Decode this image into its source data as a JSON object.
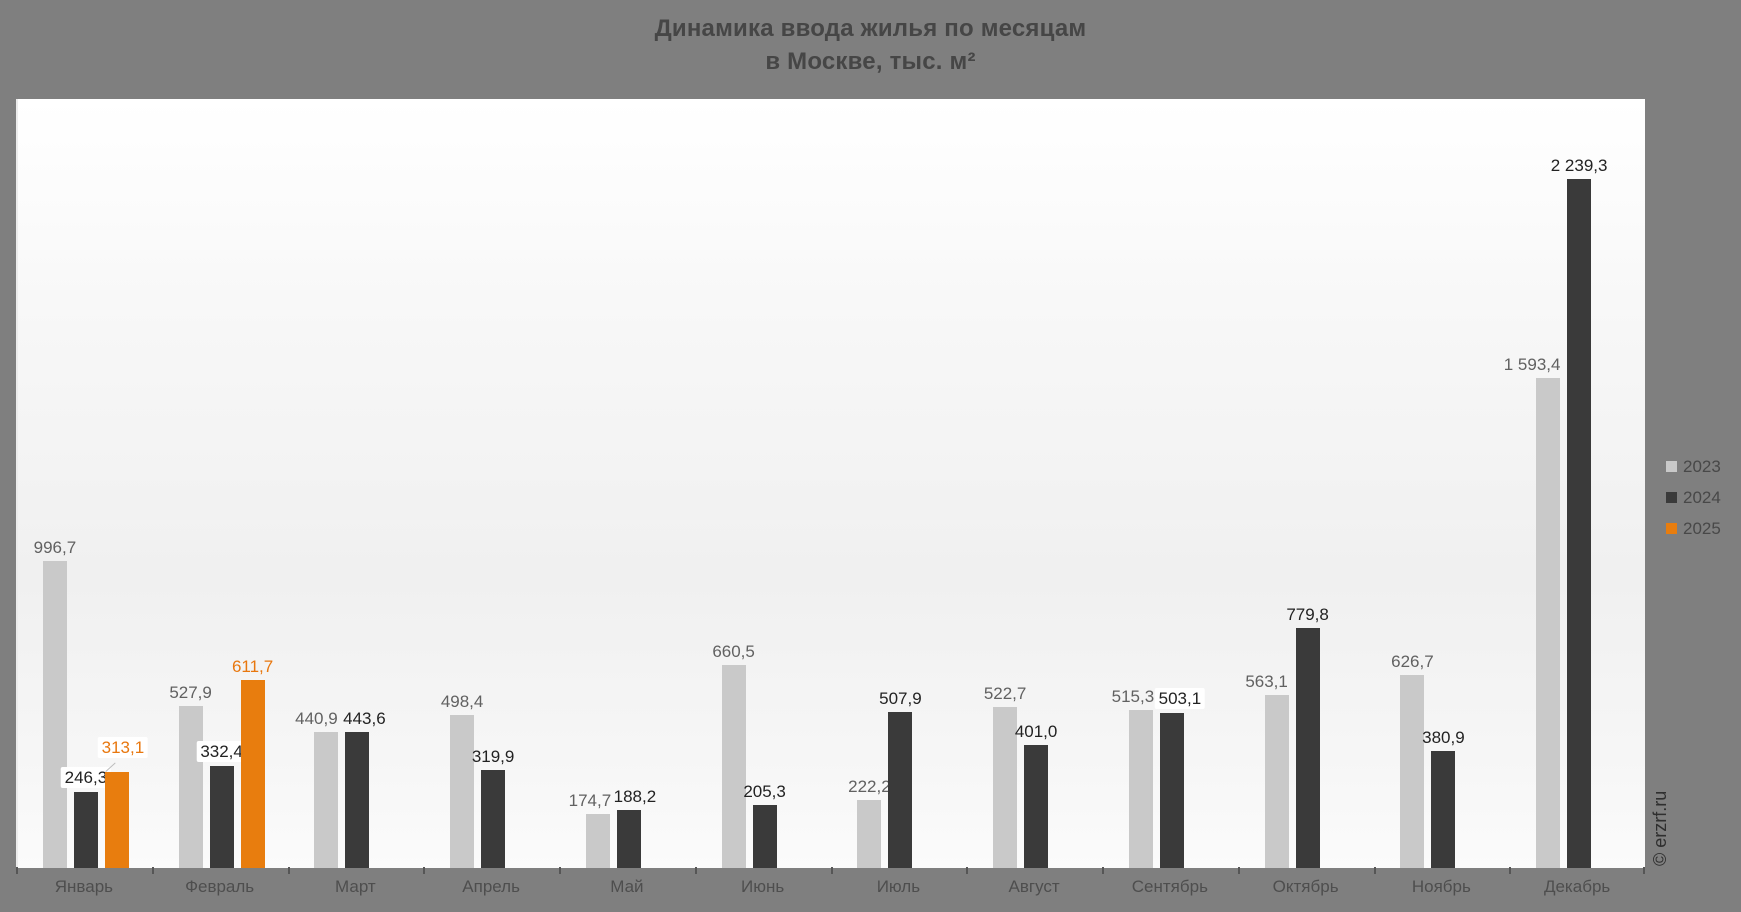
{
  "title": {
    "line1": "Динамика ввода жилья по месяцам",
    "line2": "в Москве, тыс. м²"
  },
  "watermark": "© erzrf.ru",
  "colors": {
    "background": "#7f7f7f",
    "title_text": "#464646",
    "axis_text": "#4e4e4e",
    "legend_text": "#484848",
    "series_2023": "#c9c9c9",
    "series_2024": "#3a3a3a",
    "series_2025": "#e87d0e",
    "label_2023": "#616161",
    "label_2024": "#222222",
    "label_2025": "#e8770e"
  },
  "legend": {
    "items": [
      {
        "label": "2023",
        "color": "#c9c9c9"
      },
      {
        "label": "2024",
        "color": "#3a3a3a"
      },
      {
        "label": "2025",
        "color": "#e87d0e"
      }
    ]
  },
  "chart_data": {
    "type": "bar",
    "title": "Динамика ввода жилья по месяцам в Москве, тыс. м²",
    "ylabel": "тыс. м²",
    "xlabel": "",
    "ylim": [
      0,
      2500
    ],
    "grid": false,
    "legend_position": "right",
    "categories": [
      "Январь",
      "Февраль",
      "Март",
      "Апрель",
      "Май",
      "Июнь",
      "Июль",
      "Август",
      "Сентябрь",
      "Октябрь",
      "Ноябрь",
      "Декабрь"
    ],
    "series": [
      {
        "name": "2023",
        "color": "#c9c9c9",
        "label_color": "#616161",
        "values": [
          996.7,
          527.9,
          440.9,
          498.4,
          174.7,
          660.5,
          222.2,
          522.7,
          515.3,
          563.1,
          626.7,
          1593.4
        ],
        "labels": [
          "996,7",
          "527,9",
          "440,9",
          "498,4",
          "174,7",
          "660,5",
          "222,2",
          "522,7",
          "515,3",
          "563,1",
          "626,7",
          "1 593,4"
        ],
        "boxed": [
          false,
          false,
          false,
          false,
          false,
          false,
          false,
          false,
          false,
          false,
          false,
          false
        ],
        "leader": [
          false,
          false,
          false,
          false,
          false,
          false,
          false,
          false,
          false,
          false,
          false,
          false
        ],
        "dx": [
          0,
          0,
          -10,
          0,
          -8,
          0,
          0,
          0,
          -8,
          -10,
          0,
          -16
        ]
      },
      {
        "name": "2024",
        "color": "#3a3a3a",
        "label_color": "#222222",
        "values": [
          246.3,
          332.4,
          443.6,
          319.9,
          188.2,
          205.3,
          507.9,
          401.0,
          503.1,
          779.8,
          380.9,
          2239.3
        ],
        "labels": [
          "246,3",
          "332,4",
          "443,6",
          "319,9",
          "188,2",
          "205,3",
          "507,9",
          "401,0",
          "503,1",
          "779,8",
          "380,9",
          "2 239,3"
        ],
        "boxed": [
          true,
          true,
          false,
          false,
          false,
          false,
          false,
          false,
          true,
          false,
          false,
          false
        ],
        "leader": [
          false,
          false,
          false,
          false,
          false,
          false,
          false,
          false,
          false,
          false,
          false,
          false
        ],
        "dx": [
          0,
          0,
          7,
          0,
          6,
          0,
          0,
          0,
          8,
          0,
          0,
          0
        ]
      },
      {
        "name": "2025",
        "color": "#e87d0e",
        "label_color": "#e8770e",
        "values": [
          313.1,
          611.7,
          null,
          null,
          null,
          null,
          null,
          null,
          null,
          null,
          null,
          null
        ],
        "labels": [
          "313,1",
          "611,7",
          null,
          null,
          null,
          null,
          null,
          null,
          null,
          null,
          null,
          null
        ],
        "boxed": [
          true,
          false,
          false,
          false,
          false,
          false,
          false,
          false,
          false,
          false,
          false,
          false
        ],
        "leader": [
          true,
          false,
          false,
          false,
          false,
          false,
          false,
          false,
          false,
          false,
          false,
          false
        ],
        "dx": [
          6,
          0,
          0,
          0,
          0,
          0,
          0,
          0,
          0,
          0,
          0,
          0
        ]
      }
    ]
  }
}
